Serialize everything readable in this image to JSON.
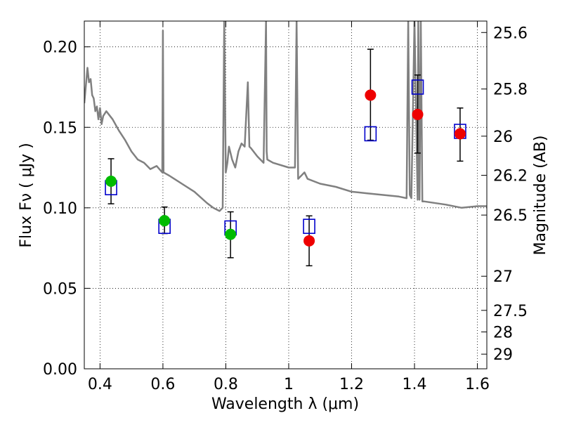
{
  "chart_data": {
    "type": "scatter",
    "xlabel": "Wavelength  λ (μm)",
    "ylabel": "Flux  Fν  ( μJy )",
    "ylabel_right": "Magnitude (AB)",
    "xlim": [
      0.35,
      1.63
    ],
    "ylim": [
      0.0,
      0.216
    ],
    "x_ticks": [
      0.4,
      0.6,
      0.8,
      1.0,
      1.2,
      1.4,
      1.6
    ],
    "x_tick_labels": [
      "0.4",
      "0.6",
      "0.8",
      "1",
      "1.2",
      "1.4",
      "1.6"
    ],
    "y_ticks": [
      0.0,
      0.05,
      0.1,
      0.15,
      0.2
    ],
    "y_tick_labels": [
      "0.00",
      "0.05",
      "0.10",
      "0.15",
      "0.20"
    ],
    "right_ticks": [
      {
        "flux": 0.2089,
        "label": "25.6"
      },
      {
        "flux": 0.1738,
        "label": "25.8"
      },
      {
        "flux": 0.1445,
        "label": "26"
      },
      {
        "flux": 0.1202,
        "label": "26.2"
      },
      {
        "flux": 0.0955,
        "label": "26.5"
      },
      {
        "flux": 0.0575,
        "label": "27"
      },
      {
        "flux": 0.0363,
        "label": "27.5"
      },
      {
        "flux": 0.0229,
        "label": "28"
      },
      {
        "flux": 0.0091,
        "label": "29"
      }
    ],
    "grid": true,
    "series": [
      {
        "marker": "square",
        "color": "#0000cc",
        "x": [
          0.435,
          0.605,
          0.815,
          1.065,
          1.26,
          1.41,
          1.545
        ],
        "y": [
          0.1125,
          0.0885,
          0.0875,
          0.0885,
          0.146,
          0.175,
          0.1475
        ]
      },
      {
        "marker": "circle",
        "color": "#00bb00",
        "x": [
          0.435,
          0.605,
          0.815
        ],
        "y": [
          0.1165,
          0.092,
          0.0835
        ]
      },
      {
        "marker": "circle",
        "color": "#ee0000",
        "x": [
          1.065,
          1.26,
          1.41,
          1.545
        ],
        "y": [
          0.0795,
          0.17,
          0.158,
          0.146
        ]
      }
    ],
    "errorbars": [
      {
        "x": 0.435,
        "low": 0.1025,
        "high": 0.1305
      },
      {
        "x": 0.605,
        "low": 0.084,
        "high": 0.1005
      },
      {
        "x": 0.815,
        "low": 0.069,
        "high": 0.0975
      },
      {
        "x": 1.065,
        "low": 0.064,
        "high": 0.095
      },
      {
        "x": 1.26,
        "low": 0.142,
        "high": 0.1985
      },
      {
        "x": 1.41,
        "low": 0.134,
        "high": 0.1825
      },
      {
        "x": 1.545,
        "low": 0.129,
        "high": 0.162
      }
    ],
    "model_spectrum": {
      "color": "#808080",
      "x": [
        0.35,
        0.36,
        0.365,
        0.37,
        0.375,
        0.38,
        0.385,
        0.39,
        0.395,
        0.4,
        0.405,
        0.41,
        0.42,
        0.44,
        0.46,
        0.48,
        0.5,
        0.52,
        0.54,
        0.56,
        0.58,
        0.598,
        0.6,
        0.602,
        0.62,
        0.66,
        0.7,
        0.74,
        0.76,
        0.78,
        0.79,
        0.795,
        0.8,
        0.805,
        0.81,
        0.82,
        0.83,
        0.84,
        0.85,
        0.86,
        0.87,
        0.875,
        0.88,
        0.9,
        0.92,
        0.928,
        0.93,
        0.932,
        0.95,
        1.0,
        1.02,
        1.025,
        1.03,
        1.05,
        1.06,
        1.1,
        1.15,
        1.2,
        1.25,
        1.3,
        1.35,
        1.375,
        1.38,
        1.385,
        1.39,
        1.4,
        1.41,
        1.412,
        1.416,
        1.42,
        1.425,
        1.43,
        1.5,
        1.55,
        1.6,
        1.63
      ],
      "y": [
        0.165,
        0.187,
        0.178,
        0.18,
        0.17,
        0.168,
        0.16,
        0.163,
        0.155,
        0.162,
        0.152,
        0.157,
        0.16,
        0.155,
        0.148,
        0.142,
        0.135,
        0.13,
        0.128,
        0.124,
        0.126,
        0.122,
        0.21,
        0.122,
        0.12,
        0.115,
        0.11,
        0.103,
        0.1,
        0.098,
        0.1,
        0.216,
        0.122,
        0.128,
        0.138,
        0.13,
        0.125,
        0.135,
        0.14,
        0.138,
        0.178,
        0.138,
        0.137,
        0.132,
        0.128,
        0.216,
        0.135,
        0.13,
        0.128,
        0.125,
        0.125,
        0.216,
        0.118,
        0.122,
        0.118,
        0.115,
        0.113,
        0.11,
        0.109,
        0.108,
        0.107,
        0.106,
        0.216,
        0.108,
        0.106,
        0.216,
        0.105,
        0.216,
        0.105,
        0.216,
        0.104,
        0.104,
        0.102,
        0.1,
        0.101,
        0.101
      ]
    }
  }
}
